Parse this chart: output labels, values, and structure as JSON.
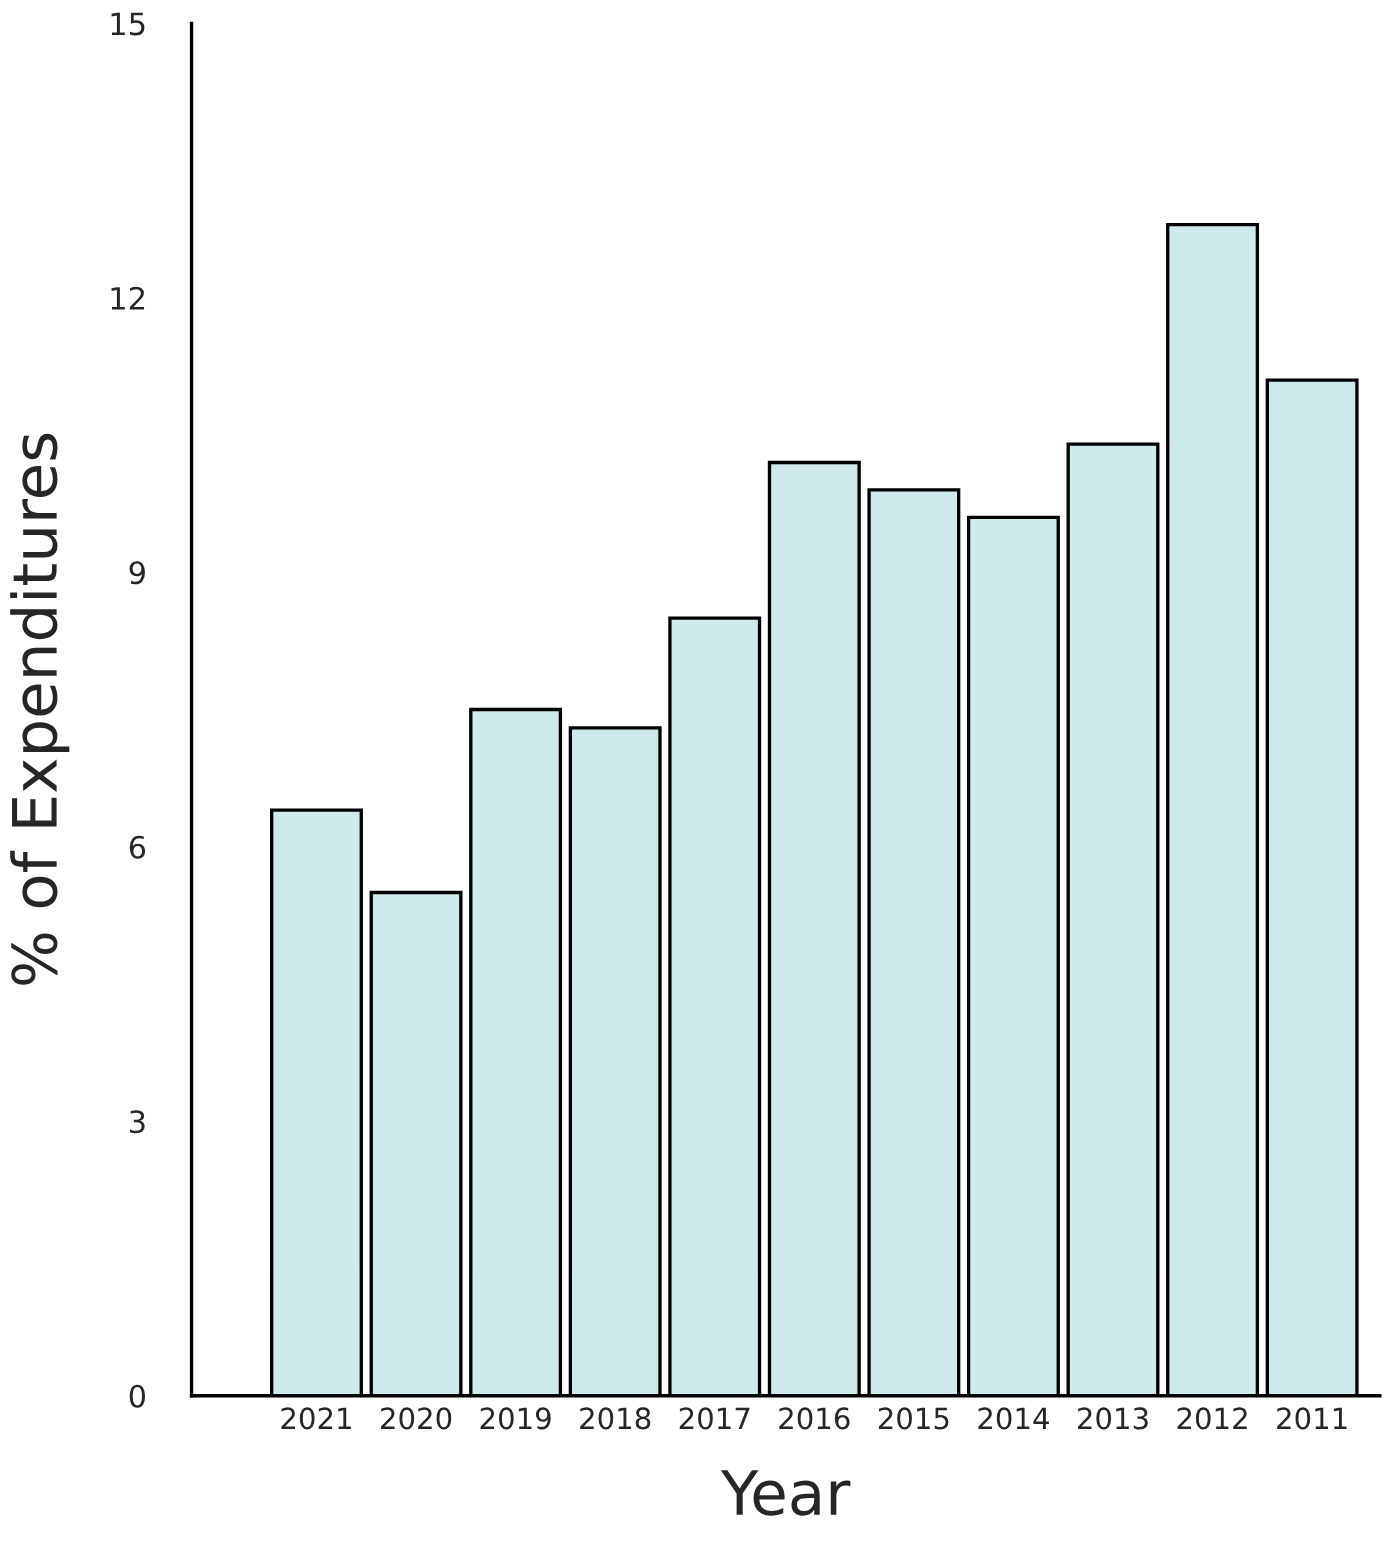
{
  "chart_data": {
    "type": "bar",
    "xlabel": "Year",
    "ylabel": "% of Expenditures",
    "categories": [
      "2021",
      "2020",
      "2019",
      "2018",
      "2017",
      "2016",
      "2015",
      "2014",
      "2013",
      "2012",
      "2011"
    ],
    "values": [
      6.4,
      5.5,
      7.5,
      7.3,
      8.5,
      10.2,
      9.9,
      9.6,
      10.4,
      12.8,
      11.1
    ],
    "color": "#cfeaed",
    "ylim": [
      0,
      15
    ],
    "yticks": [
      0,
      3,
      6,
      9,
      12,
      15
    ],
    "grid": false,
    "legend": false
  }
}
